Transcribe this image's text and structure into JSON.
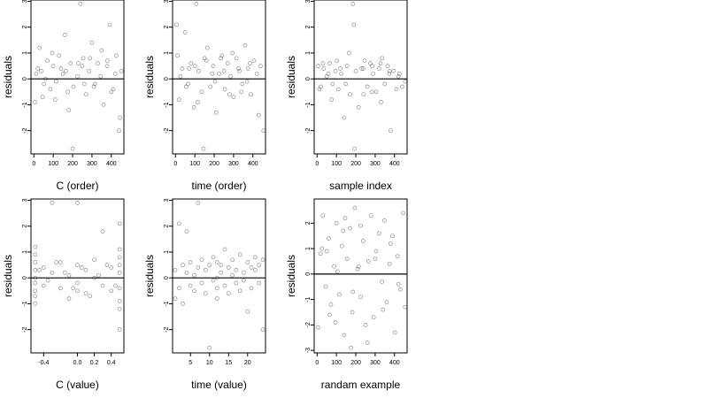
{
  "figure": {
    "background": "#ffffff",
    "point_color": "#000000",
    "line_color": "#000000"
  },
  "chart_data": [
    {
      "type": "scatter",
      "xlabel": "C (order)",
      "ylabel": "residuals",
      "xlim": [
        -15,
        465
      ],
      "ylim": [
        -2.9,
        3.05
      ],
      "xticks": [
        0,
        100,
        200,
        300,
        400
      ],
      "xticklabels": [
        "0",
        "100",
        "200",
        "300",
        "400"
      ],
      "yticks": [
        -2,
        -1,
        0,
        1,
        2,
        3
      ],
      "yticklabels": [
        "-2",
        "-1",
        "0",
        "1",
        "2",
        "3"
      ],
      "hline": 0,
      "points": {
        "x": [
          5,
          20,
          38,
          52,
          70,
          85,
          100,
          115,
          130,
          150,
          160,
          175,
          190,
          205,
          225,
          240,
          255,
          270,
          285,
          300,
          315,
          330,
          345,
          360,
          378,
          392,
          410,
          425,
          440,
          452,
          12,
          45,
          95,
          140,
          180,
          230,
          260,
          290,
          350,
          400,
          420,
          445,
          30,
          60,
          110,
          165,
          200,
          250,
          310,
          380
        ],
        "y": [
          -0.9,
          0.4,
          0.3,
          -0.2,
          0.7,
          -0.4,
          0.5,
          -0.1,
          0.9,
          0.2,
          1.7,
          -0.5,
          0.6,
          -0.3,
          0.1,
          2.9,
          0.8,
          -0.6,
          0.3,
          1.4,
          -0.2,
          0.6,
          0.1,
          -1.0,
          0.5,
          2.1,
          -0.4,
          0.9,
          -2.0,
          0.3,
          0.2,
          -0.7,
          1.0,
          0.4,
          -1.2,
          0.6,
          -0.2,
          0.8,
          1.1,
          -0.5,
          0.2,
          -1.5,
          1.2,
          0.0,
          -0.8,
          0.3,
          -2.7,
          0.5,
          -0.3,
          0.7
        ]
      }
    },
    {
      "type": "scatter",
      "xlabel": "time (order)",
      "ylabel": "residuals",
      "xlim": [
        -15,
        465
      ],
      "ylim": [
        -2.9,
        3.05
      ],
      "xticks": [
        0,
        100,
        200,
        300,
        400
      ],
      "xticklabels": [
        "0",
        "100",
        "200",
        "300",
        "400"
      ],
      "yticks": [
        -2,
        -1,
        0,
        1,
        2,
        3
      ],
      "yticklabels": [
        "-2",
        "-1",
        "0",
        "1",
        "2",
        "3"
      ],
      "hline": 0,
      "points": {
        "x": [
          5,
          18,
          35,
          50,
          65,
          80,
          95,
          108,
          120,
          135,
          150,
          165,
          180,
          195,
          210,
          225,
          240,
          255,
          270,
          285,
          300,
          315,
          330,
          345,
          360,
          375,
          390,
          405,
          420,
          440,
          455,
          25,
          70,
          115,
          160,
          205,
          250,
          295,
          340,
          385,
          430,
          10,
          55,
          100,
          145,
          190,
          235,
          280,
          325,
          370
        ],
        "y": [
          2.1,
          -0.8,
          0.4,
          1.8,
          -0.2,
          0.6,
          -1.1,
          2.9,
          0.3,
          -0.5,
          0.8,
          1.2,
          -0.3,
          0.5,
          -1.3,
          0.2,
          0.9,
          -0.4,
          0.6,
          0.1,
          -0.7,
          0.8,
          0.3,
          -0.2,
          1.3,
          0.4,
          -0.6,
          0.7,
          0.2,
          0.5,
          -2.0,
          0.1,
          0.4,
          -0.9,
          0.7,
          -0.1,
          0.3,
          1.0,
          -0.5,
          0.6,
          -1.4,
          0.9,
          -0.3,
          0.5,
          -2.7,
          0.2,
          0.8,
          -0.6,
          0.4,
          -0.1
        ]
      }
    },
    {
      "type": "scatter",
      "xlabel": "sample index",
      "ylabel": "residuals",
      "xlim": [
        -15,
        465
      ],
      "ylim": [
        -2.9,
        3.05
      ],
      "xticks": [
        0,
        100,
        200,
        300,
        400
      ],
      "xticklabels": [
        "0",
        "100",
        "200",
        "300",
        "400"
      ],
      "yticks": [
        -2,
        -1,
        0,
        1,
        2,
        3
      ],
      "yticklabels": [
        "-2",
        "-1",
        "0",
        "1",
        "2",
        "3"
      ],
      "hline": 0,
      "points": {
        "x": [
          5,
          20,
          35,
          50,
          65,
          80,
          95,
          110,
          125,
          140,
          155,
          170,
          185,
          200,
          215,
          230,
          245,
          260,
          275,
          290,
          305,
          320,
          335,
          350,
          365,
          380,
          395,
          410,
          425,
          440,
          455,
          30,
          75,
          120,
          165,
          190,
          240,
          285,
          330,
          375,
          420,
          12,
          58,
          103,
          148,
          193,
          238,
          283,
          328,
          373
        ],
        "y": [
          0.5,
          -0.3,
          0.4,
          0.1,
          0.6,
          -0.2,
          0.3,
          -0.4,
          0.2,
          -1.5,
          0.5,
          -0.6,
          2.9,
          0.3,
          -1.1,
          0.4,
          0.7,
          -0.3,
          0.6,
          0.2,
          -0.5,
          0.4,
          0.8,
          -0.2,
          0.5,
          -2.0,
          0.3,
          -0.4,
          0.2,
          -0.3,
          -0.1,
          0.6,
          -0.8,
          0.4,
          1.0,
          2.1,
          -0.6,
          0.5,
          -0.9,
          0.3,
          0.1,
          -0.4,
          0.2,
          0.7,
          -0.2,
          -2.7,
          0.4,
          -0.5,
          0.6,
          0.2
        ]
      }
    },
    {
      "type": "scatter",
      "xlabel": "C (value)",
      "ylabel": "residuals",
      "xlim": [
        -0.55,
        0.55
      ],
      "ylim": [
        -2.9,
        3.05
      ],
      "xticks": [
        -0.4,
        0.0,
        0.2,
        0.4
      ],
      "xticklabels": [
        "-0.4",
        "0.0",
        "0.2",
        "0.4"
      ],
      "yticks": [
        -2,
        -1,
        0,
        1,
        2,
        3
      ],
      "yticklabels": [
        "-2",
        "-1",
        "0",
        "1",
        "2",
        "3"
      ],
      "hline": 0,
      "points": {
        "x": [
          -0.5,
          -0.5,
          -0.5,
          -0.5,
          -0.5,
          -0.5,
          -0.5,
          -0.5,
          -0.4,
          -0.4,
          -0.3,
          -0.3,
          -0.2,
          -0.2,
          -0.1,
          -0.1,
          0.0,
          0.0,
          0.0,
          0.1,
          0.1,
          0.2,
          0.2,
          0.3,
          0.3,
          0.4,
          0.4,
          0.5,
          0.5,
          0.5,
          0.5,
          0.5,
          0.5,
          0.5,
          0.5,
          -0.45,
          -0.35,
          -0.25,
          -0.15,
          -0.05,
          0.05,
          0.15,
          0.25,
          0.35,
          0.45,
          0.0,
          -0.5,
          0.5
        ],
        "y": [
          -1.0,
          -0.5,
          0.0,
          0.3,
          0.6,
          -0.2,
          1.2,
          -0.7,
          0.4,
          -0.3,
          2.9,
          0.2,
          -0.4,
          0.6,
          0.1,
          -0.8,
          0.5,
          -0.2,
          2.9,
          0.3,
          -0.6,
          0.7,
          0.0,
          1.8,
          -0.3,
          0.4,
          -0.5,
          -2.0,
          -1.2,
          0.2,
          0.5,
          0.8,
          -0.4,
          1.1,
          2.1,
          0.3,
          -0.1,
          0.6,
          0.2,
          -0.4,
          0.4,
          -0.7,
          0.1,
          0.5,
          -0.3,
          -0.5,
          0.9,
          -0.9
        ]
      }
    },
    {
      "type": "scatter",
      "xlabel": "time (value)",
      "ylabel": "residuals",
      "xlim": [
        0.3,
        24.7
      ],
      "ylim": [
        -2.9,
        3.05
      ],
      "xticks": [
        5,
        10,
        15,
        20
      ],
      "xticklabels": [
        "5",
        "10",
        "15",
        "20"
      ],
      "yticks": [
        -2,
        -1,
        0,
        1,
        2,
        3
      ],
      "yticklabels": [
        "-2",
        "-1",
        "0",
        "1",
        "2",
        "3"
      ],
      "hline": 0,
      "points": {
        "x": [
          1,
          1,
          2,
          2,
          3,
          3,
          4,
          4,
          5,
          5,
          6,
          6,
          7,
          7,
          8,
          8,
          9,
          9,
          10,
          10,
          11,
          11,
          12,
          12,
          12,
          12,
          13,
          13,
          14,
          14,
          15,
          15,
          16,
          16,
          17,
          17,
          18,
          18,
          19,
          19,
          20,
          20,
          21,
          21,
          22,
          22,
          23,
          23,
          24,
          24
        ],
        "y": [
          -0.8,
          0.3,
          2.1,
          -0.4,
          0.5,
          -1.0,
          1.8,
          0.2,
          -0.3,
          0.6,
          0.1,
          -0.5,
          2.9,
          0.4,
          -0.2,
          0.7,
          0.3,
          -0.6,
          -2.7,
          0.5,
          -0.1,
          0.8,
          0.0,
          -0.4,
          0.6,
          -0.8,
          0.2,
          0.5,
          1.1,
          -0.3,
          -0.6,
          0.4,
          0.1,
          0.7,
          -0.2,
          0.3,
          0.9,
          -0.5,
          0.2,
          -0.1,
          0.6,
          -1.3,
          0.4,
          -0.4,
          0.3,
          0.8,
          -0.2,
          0.5,
          -2.0,
          0.7
        ]
      }
    },
    {
      "type": "scatter",
      "xlabel": "randam example",
      "ylabel": "residuals",
      "xlim": [
        -15,
        465
      ],
      "ylim": [
        -3.1,
        2.95
      ],
      "xticks": [
        0,
        100,
        200,
        300,
        400
      ],
      "xticklabels": [
        "0",
        "100",
        "200",
        "300",
        "400"
      ],
      "yticks": [
        -3,
        -2,
        -1,
        0,
        1,
        2
      ],
      "yticklabels": [
        "-3",
        "-2",
        "-1",
        "0",
        "1",
        "2"
      ],
      "hline": 0,
      "points": {
        "x": [
          5,
          18,
          30,
          45,
          60,
          72,
          88,
          100,
          115,
          128,
          140,
          155,
          170,
          182,
          195,
          210,
          225,
          238,
          250,
          265,
          280,
          292,
          305,
          320,
          335,
          348,
          360,
          375,
          390,
          402,
          415,
          430,
          445,
          455,
          25,
          65,
          105,
          145,
          185,
          225,
          260,
          300,
          340,
          380,
          420,
          50,
          95,
          135,
          175,
          215
        ],
        "y": [
          -2.1,
          0.8,
          2.3,
          -0.5,
          1.4,
          -1.2,
          0.3,
          2.0,
          -0.8,
          1.1,
          -2.4,
          0.6,
          1.8,
          -1.5,
          2.6,
          0.2,
          -0.9,
          1.3,
          -2.0,
          0.5,
          2.3,
          -1.7,
          0.9,
          1.6,
          -0.3,
          2.1,
          -1.1,
          0.4,
          1.5,
          -2.3,
          0.7,
          -0.6,
          2.4,
          -1.3,
          1.0,
          -1.6,
          0.1,
          2.2,
          -0.7,
          1.9,
          -2.7,
          0.6,
          -1.4,
          1.2,
          -0.4,
          0.9,
          -1.9,
          1.7,
          -2.9,
          0.3
        ]
      }
    }
  ]
}
